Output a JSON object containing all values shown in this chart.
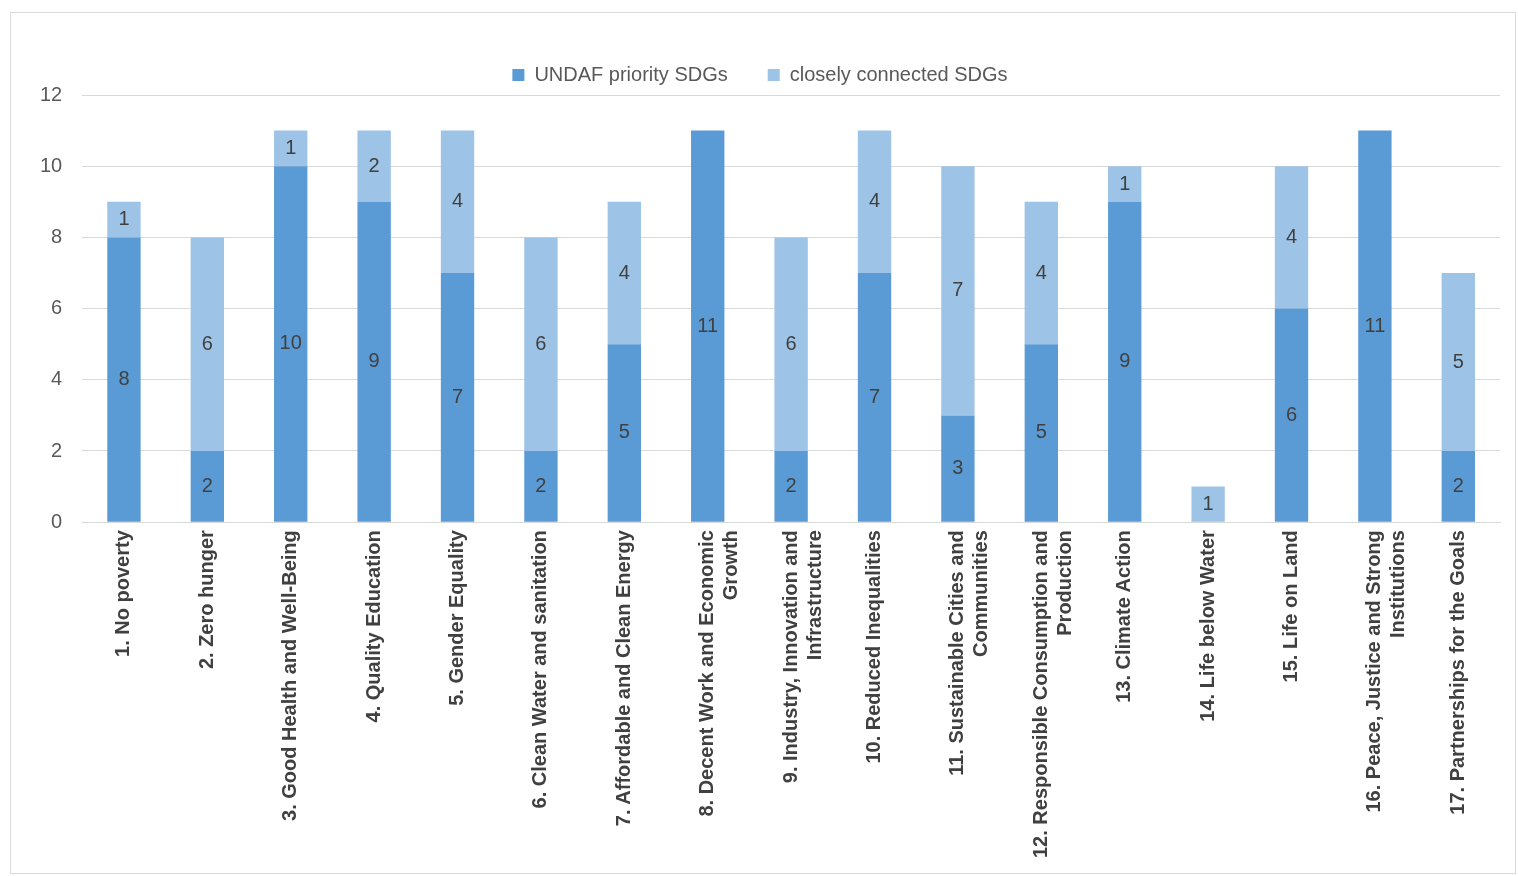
{
  "chart_data": {
    "type": "bar",
    "stacked": true,
    "categories": [
      "1. No poverty",
      "2. Zero hunger",
      "3. Good Health and Well-Being",
      "4. Quality Education",
      "5. Gender Equality",
      "6. Clean Water and sanitation",
      "7. Affordable and Clean Energy",
      "8. Decent Work and Economic Growth",
      "9. Industry, Innovation and Infrastructure",
      "10. Reduced Inequalities",
      "11. Sustainable Cities and Communities",
      "12. Responsible Consumption and Production",
      "13. Climate Action",
      "14. Life below Water",
      "15. Life on Land",
      "16. Peace, Justice and Strong Institutions",
      "17. Partnerships for the Goals"
    ],
    "series": [
      {
        "name": "UNDAF priority SDGs",
        "color": "#5b9bd5",
        "values": [
          8,
          2,
          10,
          9,
          7,
          2,
          5,
          11,
          2,
          7,
          3,
          5,
          9,
          null,
          6,
          11,
          2
        ]
      },
      {
        "name": "closely connected SDGs",
        "color": "#9dc3e6",
        "values": [
          1,
          6,
          1,
          2,
          4,
          6,
          4,
          null,
          6,
          4,
          7,
          4,
          1,
          1,
          4,
          null,
          5
        ]
      }
    ],
    "ylim": [
      0,
      12
    ],
    "yticks": [
      0,
      2,
      4,
      6,
      8,
      10,
      12
    ],
    "grid": "y",
    "legend": "top",
    "data_labels": true
  }
}
